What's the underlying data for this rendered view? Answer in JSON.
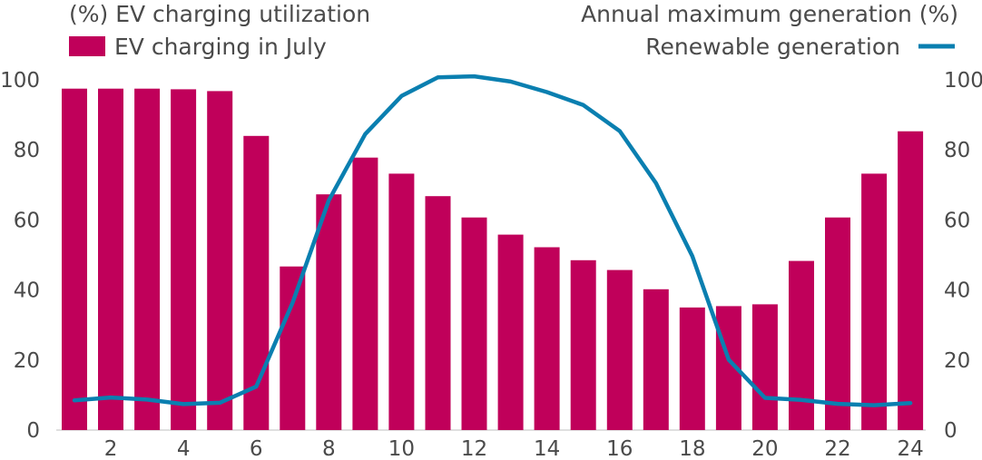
{
  "chart_data": {
    "type": "bar",
    "left_axis_title": "(%) EV charging utilization",
    "right_axis_title": "Annual maximum generation (%)",
    "categories": [
      1,
      2,
      3,
      4,
      5,
      6,
      7,
      8,
      9,
      10,
      11,
      12,
      13,
      14,
      15,
      16,
      17,
      18,
      19,
      20,
      21,
      22,
      23,
      24
    ],
    "x_tick_labels": [
      "2",
      "4",
      "6",
      "8",
      "10",
      "12",
      "14",
      "16",
      "18",
      "20",
      "22",
      "24"
    ],
    "y_tick_labels": [
      "0",
      "20",
      "40",
      "60",
      "80",
      "100"
    ],
    "ylim": [
      0,
      100
    ],
    "y2lim": [
      0,
      100
    ],
    "grid": false,
    "series": [
      {
        "name": "EV charging in July",
        "type": "bar",
        "axis": "left",
        "color": "#c0005a",
        "values": [
          97.5,
          97.5,
          97.5,
          97.3,
          96.8,
          84,
          46.7,
          67.3,
          77.8,
          73.2,
          66.8,
          60.7,
          55.8,
          52.2,
          48.5,
          45.7,
          40.2,
          35,
          35.4,
          35.9,
          48.3,
          60.7,
          73.2,
          85.3
        ]
      },
      {
        "name": "Renewable generation",
        "type": "line",
        "axis": "right",
        "color": "#0a7fb0",
        "values": [
          8.5,
          9.3,
          8.7,
          7.4,
          7.8,
          12.4,
          36.3,
          65.6,
          84.5,
          95.4,
          100.7,
          101,
          99.5,
          96.5,
          92.8,
          85.4,
          70.5,
          49.7,
          20.1,
          9.2,
          8.6,
          7.5,
          7.1,
          7.7
        ]
      }
    ],
    "legend": [
      {
        "label": "EV charging in July",
        "position": "top-left",
        "symbol": "bar"
      },
      {
        "label": "Renewable generation",
        "position": "top-right",
        "symbol": "line"
      }
    ]
  }
}
